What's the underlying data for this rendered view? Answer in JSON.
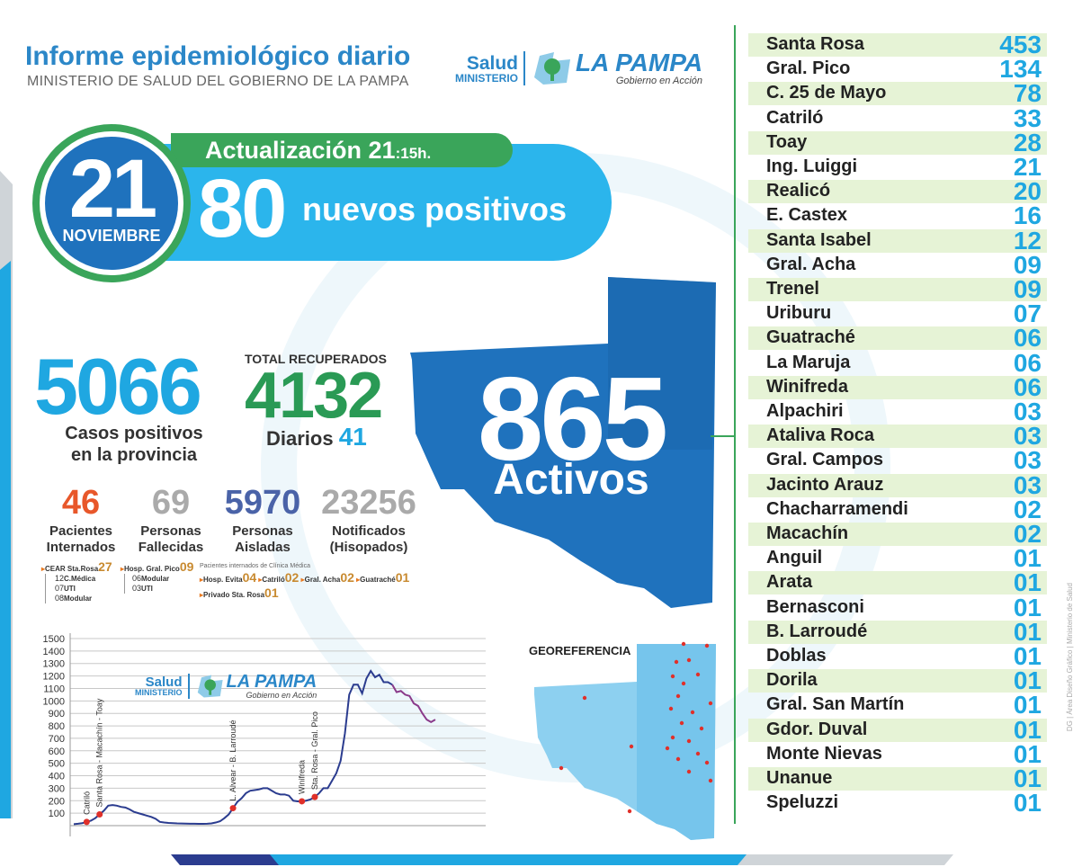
{
  "header": {
    "title": "Informe epidemiológico diario",
    "subtitle": "MINISTERIO DE SALUD DEL GOBIERNO DE LA PAMPA"
  },
  "logo": {
    "salud": "Salud",
    "ministerio": "MINISTERIO",
    "pampa": "LA PAMPA",
    "tagline": "Gobierno en Acción"
  },
  "date": {
    "day": "21",
    "month": "NOVIEMBRE"
  },
  "update": {
    "label": "Actualización 21",
    "time": ":15h."
  },
  "new_cases": {
    "value": "80",
    "label": "nuevos positivos"
  },
  "totals": {
    "positives": "5066",
    "positives_label_1": "Casos positivos",
    "positives_label_2": "en la provincia",
    "recovered_title": "TOTAL RECUPERADOS",
    "recovered": "4132",
    "daily_label": "Diarios",
    "daily_value": "41"
  },
  "stats": [
    {
      "value": "46",
      "label_1": "Pacientes",
      "label_2": "Internados",
      "color": "#e8572a"
    },
    {
      "value": "69",
      "label_1": "Personas",
      "label_2": "Fallecidas",
      "color": "#aaaaaa"
    },
    {
      "value": "5970",
      "label_1": "Personas",
      "label_2": "Aisladas",
      "color": "#4a63a8"
    },
    {
      "value": "23256",
      "label_1": "Notificados",
      "label_2": "(Hisopados)",
      "color": "#aaaaaa"
    }
  ],
  "hospital_details": {
    "cear_label": "CEAR Sta.Rosa",
    "cear_value": "27",
    "cear_cm": "12",
    "cear_cm_label": "C.Médica",
    "cear_uti": "07",
    "cear_uti_label": "UTI",
    "cear_mod": "08",
    "cear_mod_label": "Modular",
    "pico_label": "Hosp. Gral. Pico",
    "pico_value": "09",
    "pico_mod": "06",
    "pico_mod_label": "Modular",
    "pico_uti": "03",
    "pico_uti_label": "UTI",
    "clinic_title": "Pacientes internados de Clínica Médica",
    "evita_label": "Hosp. Evita",
    "evita_value": "04",
    "catrilo_label": "Catriló",
    "catrilo_value": "02",
    "acha_label": "Gral. Acha",
    "acha_value": "02",
    "guatrache_label": "Guatraché",
    "guatrache_value": "01",
    "privado_label": "Privado Sta. Rosa",
    "privado_value": "01"
  },
  "active": {
    "value": "865",
    "label": "Activos"
  },
  "localities": [
    {
      "name": "Santa Rosa",
      "value": "453"
    },
    {
      "name": "Gral. Pico",
      "value": "134"
    },
    {
      "name": "C. 25 de Mayo",
      "value": "78"
    },
    {
      "name": "Catriló",
      "value": "33"
    },
    {
      "name": "Toay",
      "value": "28"
    },
    {
      "name": "Ing. Luiggi",
      "value": "21"
    },
    {
      "name": "Realicó",
      "value": "20"
    },
    {
      "name": "E. Castex",
      "value": "16"
    },
    {
      "name": "Santa Isabel",
      "value": "12"
    },
    {
      "name": "Gral. Acha",
      "value": "09"
    },
    {
      "name": "Trenel",
      "value": "09"
    },
    {
      "name": "Uriburu",
      "value": "07"
    },
    {
      "name": "Guatraché",
      "value": "06"
    },
    {
      "name": "La Maruja",
      "value": "06"
    },
    {
      "name": "Winifreda",
      "value": "06"
    },
    {
      "name": "Alpachiri",
      "value": "03"
    },
    {
      "name": "Ataliva Roca",
      "value": "03"
    },
    {
      "name": "Gral. Campos",
      "value": "03"
    },
    {
      "name": "Jacinto Arauz",
      "value": "03"
    },
    {
      "name": "Chacharramendi",
      "value": "02"
    },
    {
      "name": "Macachín",
      "value": "02"
    },
    {
      "name": "Anguil",
      "value": "01"
    },
    {
      "name": "Arata",
      "value": "01"
    },
    {
      "name": "Bernasconi",
      "value": "01"
    },
    {
      "name": "B. Larroudé",
      "value": "01"
    },
    {
      "name": "Doblas",
      "value": "01"
    },
    {
      "name": "Dorila",
      "value": "01"
    },
    {
      "name": "Gral. San Martín",
      "value": "01"
    },
    {
      "name": "Gdor. Duval",
      "value": "01"
    },
    {
      "name": "Monte Nievas",
      "value": "01"
    },
    {
      "name": "Unanue",
      "value": "01"
    },
    {
      "name": "Speluzzi",
      "value": "01"
    }
  ],
  "georef_label": "GEOREFERENCIA",
  "side_credit": "DG | Área Diseño Gráfico | Ministerio de Salud",
  "chart_data": {
    "type": "line",
    "title": "",
    "xlabel": "",
    "ylabel": "",
    "ylim": [
      0,
      1500
    ],
    "yticks": [
      100,
      200,
      300,
      400,
      500,
      600,
      700,
      800,
      900,
      1000,
      1100,
      1200,
      1300,
      1400,
      1500
    ],
    "grid": true,
    "series": [
      {
        "values": [
          12,
          15,
          20,
          30,
          40,
          60,
          90,
          120,
          160,
          165,
          160,
          150,
          145,
          130,
          110,
          100,
          90,
          80,
          70,
          55,
          30,
          25,
          22,
          20,
          18,
          17,
          16,
          15,
          15,
          14,
          14,
          15,
          18,
          25,
          35,
          60,
          90,
          140,
          190,
          220,
          260,
          280,
          285,
          290,
          300,
          300,
          280,
          260,
          250,
          250,
          240,
          200,
          195,
          195,
          200,
          210,
          230,
          260,
          300,
          300,
          360,
          420,
          520,
          740,
          1050,
          1130,
          1130,
          1060,
          1180,
          1240,
          1190,
          1210,
          1150,
          1150,
          1130,
          1070,
          1080,
          1050,
          1040,
          980,
          960,
          900,
          850,
          830,
          850
        ],
        "highlight_from_index": 74
      }
    ],
    "annotations": [
      {
        "label": "Catriló",
        "index": 3,
        "y": 30
      },
      {
        "label": "Santa Rosa - Macachín - Toay",
        "index": 6,
        "y": 90
      },
      {
        "label": "L. Alvear - B. Larroudé",
        "index": 37,
        "y": 140
      },
      {
        "label": "Winifreda",
        "index": 53,
        "y": 195
      },
      {
        "label": "Sta. Rosa - Gral. Pico",
        "index": 56,
        "y": 230
      }
    ]
  }
}
